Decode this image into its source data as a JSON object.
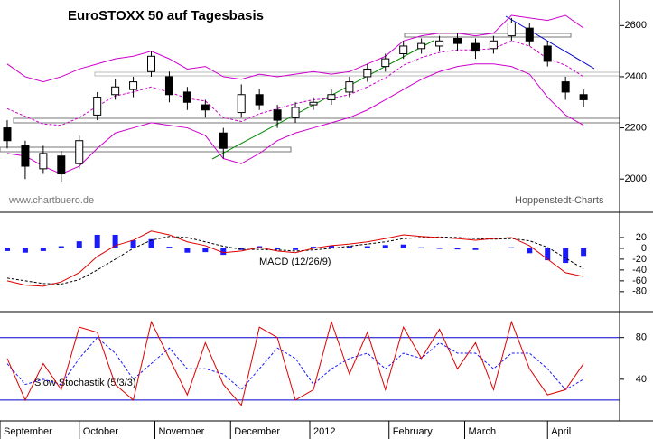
{
  "chart_data": [
    {
      "type": "candlestick",
      "title": "EuroSTOXX 50 auf Tagesbasis",
      "source_left": "www.chartbuero.de",
      "source_right": "Hoppenstedt-Charts",
      "x": [
        2,
        7,
        12,
        17,
        22,
        27,
        32,
        37,
        42,
        47,
        52,
        57,
        62,
        67,
        72,
        77,
        82,
        87,
        92,
        97,
        102,
        107,
        112,
        117,
        122,
        127,
        132,
        137,
        142,
        147,
        152,
        157,
        162
      ],
      "open": [
        2200,
        2130,
        2040,
        2090,
        2060,
        2250,
        2330,
        2350,
        2420,
        2400,
        2340,
        2290,
        2180,
        2260,
        2330,
        2270,
        2240,
        2290,
        2310,
        2340,
        2400,
        2440,
        2490,
        2510,
        2520,
        2550,
        2530,
        2510,
        2560,
        2590,
        2520,
        2380,
        2330
      ],
      "high": [
        2230,
        2150,
        2130,
        2110,
        2170,
        2340,
        2390,
        2400,
        2500,
        2420,
        2360,
        2310,
        2200,
        2370,
        2350,
        2290,
        2300,
        2320,
        2350,
        2400,
        2450,
        2490,
        2540,
        2550,
        2560,
        2570,
        2550,
        2560,
        2630,
        2610,
        2540,
        2400,
        2350
      ],
      "low": [
        2120,
        2000,
        2020,
        1990,
        2040,
        2230,
        2310,
        2320,
        2400,
        2300,
        2270,
        2240,
        2080,
        2240,
        2270,
        2200,
        2220,
        2270,
        2290,
        2320,
        2380,
        2420,
        2470,
        2490,
        2500,
        2500,
        2470,
        2490,
        2540,
        2520,
        2440,
        2310,
        2280
      ],
      "close": [
        2150,
        2050,
        2100,
        2020,
        2150,
        2320,
        2360,
        2380,
        2480,
        2330,
        2300,
        2270,
        2120,
        2330,
        2290,
        2230,
        2280,
        2300,
        2330,
        2380,
        2430,
        2470,
        2520,
        2530,
        2540,
        2530,
        2500,
        2540,
        2610,
        2540,
        2460,
        2340,
        2310
      ],
      "bands": [
        {
          "color": "#cc00cc",
          "values": [
            2450,
            2400,
            2380,
            2400,
            2430,
            2450,
            2470,
            2480,
            2500,
            2470,
            2430,
            2440,
            2400,
            2390,
            2410,
            2400,
            2410,
            2420,
            2410,
            2420,
            2450,
            2480,
            2540,
            2560,
            2570,
            2570,
            2560,
            2570,
            2640,
            2630,
            2620,
            2640,
            2590
          ]
        },
        {
          "color": "#cc00cc",
          "dashed": true,
          "values": [
            2275,
            2245,
            2215,
            2210,
            2240,
            2285,
            2325,
            2340,
            2360,
            2340,
            2315,
            2305,
            2240,
            2225,
            2255,
            2275,
            2295,
            2310,
            2315,
            2330,
            2360,
            2395,
            2445,
            2475,
            2495,
            2505,
            2505,
            2510,
            2540,
            2520,
            2470,
            2445,
            2400
          ]
        },
        {
          "color": "#cc00cc",
          "values": [
            2100,
            2090,
            2050,
            2020,
            2050,
            2120,
            2180,
            2200,
            2220,
            2210,
            2200,
            2170,
            2080,
            2060,
            2100,
            2150,
            2180,
            2200,
            2220,
            2240,
            2270,
            2310,
            2350,
            2390,
            2420,
            2440,
            2450,
            2450,
            2440,
            2410,
            2320,
            2250,
            2210
          ]
        }
      ],
      "ylim": [
        1870,
        2700
      ],
      "yticks": [
        2600,
        2400,
        2200,
        2000
      ]
    },
    {
      "type": "macd",
      "label": "MACD (12/26/9)",
      "macd": {
        "color": "#dd0000",
        "values": [
          -60,
          -68,
          -70,
          -62,
          -45,
          -15,
          5,
          15,
          32,
          25,
          12,
          5,
          -8,
          -5,
          2,
          -5,
          -8,
          0,
          5,
          8,
          12,
          18,
          25,
          22,
          20,
          18,
          15,
          18,
          20,
          5,
          -20,
          -45,
          -52
        ]
      },
      "signal": {
        "color": "#000000",
        "values": [
          -55,
          -60,
          -65,
          -66,
          -58,
          -40,
          -20,
          0,
          15,
          22,
          20,
          12,
          4,
          -2,
          -2,
          -3,
          -5,
          -3,
          0,
          4,
          8,
          12,
          18,
          20,
          21,
          20,
          18,
          17,
          18,
          14,
          2,
          -18,
          -38
        ]
      },
      "histogram": {
        "color": "#1a1aff",
        "values": [
          -5,
          -8,
          -5,
          4,
          13,
          25,
          25,
          15,
          17,
          3,
          -8,
          -7,
          -12,
          -3,
          4,
          -2,
          -3,
          3,
          5,
          4,
          4,
          6,
          7,
          2,
          -1,
          -2,
          -3,
          1,
          2,
          -9,
          -22,
          -27,
          -14
        ]
      },
      "ylim": [
        -117,
        65
      ],
      "yticks": [
        20,
        0,
        -20,
        -40,
        -60,
        -80
      ]
    },
    {
      "type": "stochastic",
      "label": "Slow Stochastik (5/3/3)",
      "k": {
        "color": "#dd0000",
        "values": [
          60,
          20,
          55,
          30,
          90,
          85,
          35,
          20,
          95,
          60,
          25,
          75,
          35,
          15,
          90,
          80,
          20,
          30,
          95,
          45,
          85,
          30,
          90,
          60,
          88,
          50,
          75,
          30,
          95,
          50,
          25,
          30,
          55
        ]
      },
      "d": {
        "color": "#1a1aff",
        "values": [
          55,
          35,
          40,
          35,
          60,
          80,
          65,
          40,
          55,
          70,
          50,
          50,
          45,
          30,
          50,
          70,
          60,
          35,
          50,
          60,
          65,
          50,
          65,
          60,
          75,
          65,
          65,
          50,
          65,
          65,
          50,
          30,
          40
        ]
      },
      "levels": [
        80,
        20
      ],
      "level_color": "#0000cc",
      "ylim": [
        0,
        104
      ],
      "yticks": [
        80,
        40
      ],
      "xlim": [
        0,
        172
      ],
      "xticks": [
        {
          "value": 0,
          "label": "September"
        },
        {
          "value": 22,
          "label": "October"
        },
        {
          "value": 43,
          "label": "November"
        },
        {
          "value": 64,
          "label": "December"
        },
        {
          "value": 86,
          "label": "2012"
        },
        {
          "value": 108,
          "label": "February"
        },
        {
          "value": 129,
          "label": "March"
        },
        {
          "value": 152,
          "label": "April"
        }
      ]
    }
  ]
}
